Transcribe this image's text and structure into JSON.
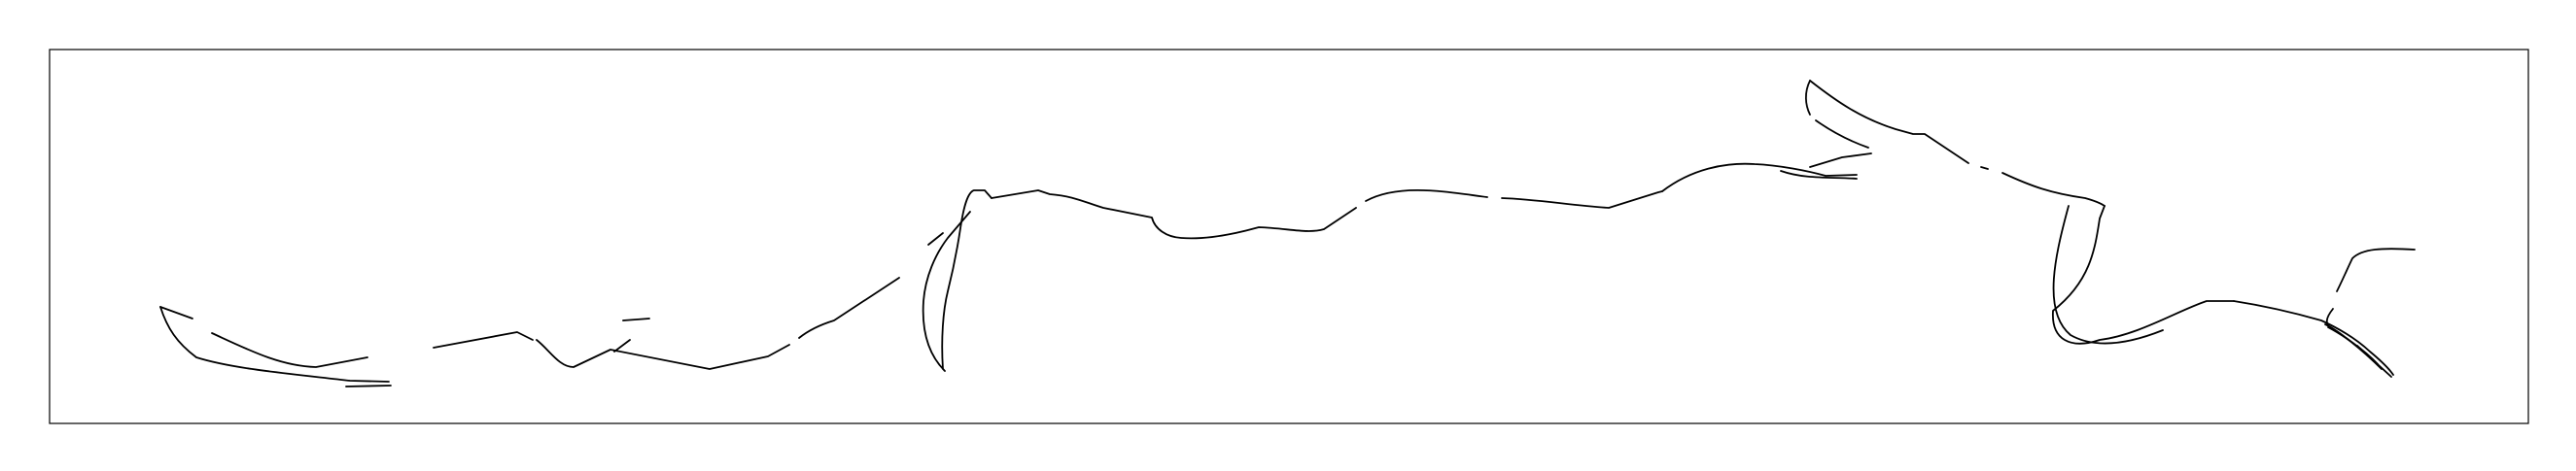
{
  "drawing": {
    "stroke_color": "#000000",
    "background_color": "#ffffff",
    "frame_color": "#000000"
  }
}
